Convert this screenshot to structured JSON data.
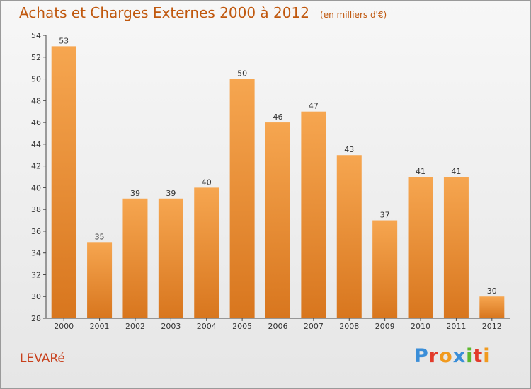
{
  "header": {
    "title": "Achats et Charges Externes 2000 à 2012",
    "unit": "(en milliers d'€)"
  },
  "place": "LEVARé",
  "logo": {
    "text": "Proxiti",
    "letter_colors": [
      "#3a8ed8",
      "#e23a2a",
      "#f19a1f",
      "#3a8ed8",
      "#5cb82e",
      "#e23a2a",
      "#f19a1f"
    ]
  },
  "colors": {
    "bar_top": "#f6a650",
    "bar_bottom": "#d8761e",
    "title": "#c0580e",
    "place": "#c8401c"
  },
  "chart_data": {
    "type": "bar",
    "title": "Achats et Charges Externes 2000 à 2012",
    "subtitle": "(en milliers d'€)",
    "xlabel": "",
    "ylabel": "",
    "categories": [
      "2000",
      "2001",
      "2002",
      "2003",
      "2004",
      "2005",
      "2006",
      "2007",
      "2008",
      "2009",
      "2010",
      "2011",
      "2012"
    ],
    "values": [
      53,
      35,
      39,
      39,
      40,
      50,
      46,
      47,
      43,
      37,
      41,
      41,
      30
    ],
    "ylim": [
      28,
      54
    ],
    "yticks": [
      28,
      30,
      32,
      34,
      36,
      38,
      40,
      42,
      44,
      46,
      48,
      50,
      52,
      54
    ],
    "grid": false,
    "legend": "none",
    "data_labels": true
  }
}
